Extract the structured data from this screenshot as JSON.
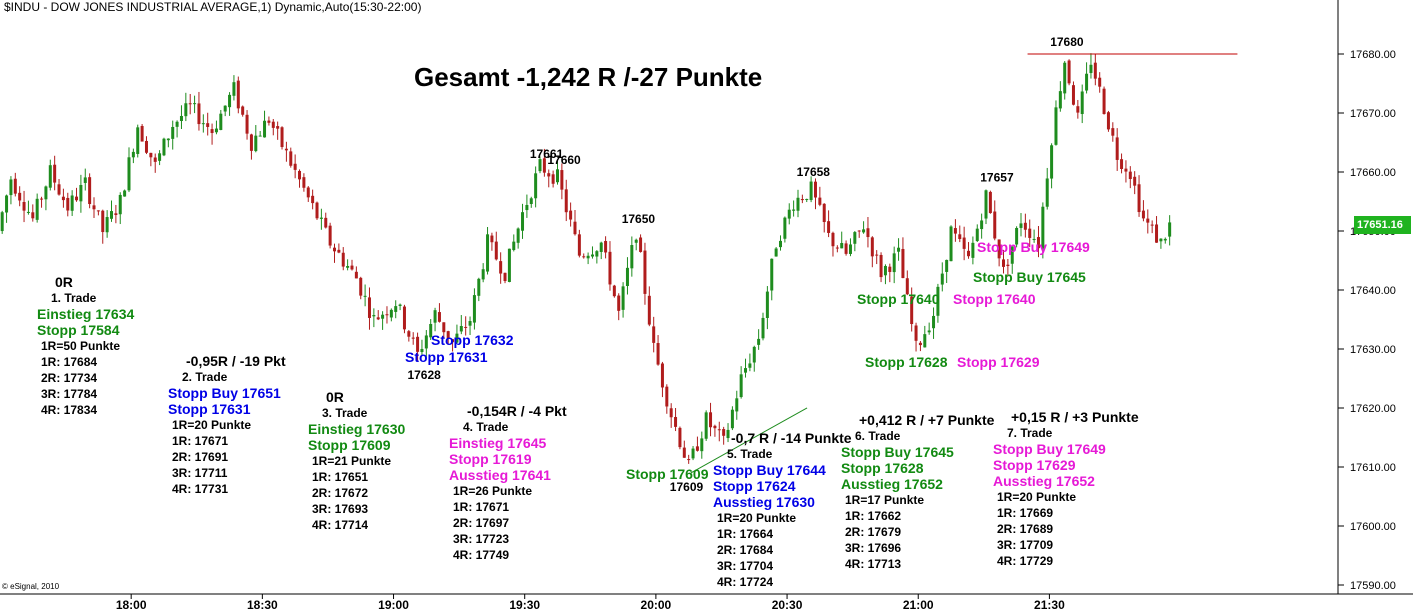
{
  "header": {
    "title": "$INDU - DOW JONES INDUSTRIAL AVERAGE,1) Dynamic,Auto(15:30-22:00)",
    "summary": "Gesamt -1,242 R /-27 Punkte",
    "credit": "© eSignal, 2010",
    "last_price": "17651.16"
  },
  "chart_data": {
    "type": "candlestick",
    "ylim": [
      17588,
      17688
    ],
    "y_ticks": [
      "17590.00",
      "17600.00",
      "17610.00",
      "17620.00",
      "17630.00",
      "17640.00",
      "17650.00",
      "17660.00",
      "17670.00",
      "17680.00"
    ],
    "y_tick_values": [
      17590,
      17600,
      17610,
      17620,
      17630,
      17640,
      17650,
      17660,
      17670,
      17680
    ],
    "x_ticks": [
      "18:00",
      "18:30",
      "19:00",
      "19:30",
      "20:00",
      "20:30",
      "21:00",
      "21:30"
    ],
    "x_tick_minutes": [
      30,
      60,
      90,
      120,
      150,
      180,
      210,
      240
    ],
    "x_range_minutes": [
      0,
      306
    ],
    "colors": {
      "up": "#1e8c1e",
      "down": "#b01c1c",
      "grid": "#cccccc",
      "resistance": "#c00000",
      "trendline": "#1e8c1e"
    },
    "anchors": [
      {
        "t": 0,
        "p": 17650
      },
      {
        "t": 3,
        "p": 17659
      },
      {
        "t": 8,
        "p": 17652
      },
      {
        "t": 12,
        "p": 17660
      },
      {
        "t": 16,
        "p": 17654
      },
      {
        "t": 20,
        "p": 17658
      },
      {
        "t": 24,
        "p": 17650
      },
      {
        "t": 28,
        "p": 17655
      },
      {
        "t": 32,
        "p": 17668
      },
      {
        "t": 36,
        "p": 17661
      },
      {
        "t": 40,
        "p": 17668
      },
      {
        "t": 44,
        "p": 17671
      },
      {
        "t": 49,
        "p": 17667
      },
      {
        "t": 54,
        "p": 17674
      },
      {
        "t": 58,
        "p": 17665
      },
      {
        "t": 62,
        "p": 17669
      },
      {
        "t": 66,
        "p": 17663
      },
      {
        "t": 70,
        "p": 17657
      },
      {
        "t": 76,
        "p": 17648
      },
      {
        "t": 82,
        "p": 17642
      },
      {
        "t": 86,
        "p": 17635
      },
      {
        "t": 91,
        "p": 17638
      },
      {
        "t": 96,
        "p": 17629
      },
      {
        "t": 100,
        "p": 17636
      },
      {
        "t": 104,
        "p": 17631
      },
      {
        "t": 108,
        "p": 17635
      },
      {
        "t": 112,
        "p": 17648
      },
      {
        "t": 116,
        "p": 17643
      },
      {
        "t": 120,
        "p": 17653
      },
      {
        "t": 124,
        "p": 17661
      },
      {
        "t": 128,
        "p": 17659
      },
      {
        "t": 133,
        "p": 17646
      },
      {
        "t": 138,
        "p": 17648
      },
      {
        "t": 142,
        "p": 17636
      },
      {
        "t": 146,
        "p": 17650
      },
      {
        "t": 150,
        "p": 17630
      },
      {
        "t": 154,
        "p": 17619
      },
      {
        "t": 158,
        "p": 17610
      },
      {
        "t": 162,
        "p": 17618
      },
      {
        "t": 166,
        "p": 17614
      },
      {
        "t": 170,
        "p": 17625
      },
      {
        "t": 174,
        "p": 17632
      },
      {
        "t": 178,
        "p": 17648
      },
      {
        "t": 182,
        "p": 17655
      },
      {
        "t": 186,
        "p": 17657
      },
      {
        "t": 190,
        "p": 17649
      },
      {
        "t": 194,
        "p": 17646
      },
      {
        "t": 198,
        "p": 17651
      },
      {
        "t": 202,
        "p": 17643
      },
      {
        "t": 206,
        "p": 17646
      },
      {
        "t": 210,
        "p": 17630
      },
      {
        "t": 214,
        "p": 17636
      },
      {
        "t": 218,
        "p": 17650
      },
      {
        "t": 222,
        "p": 17645
      },
      {
        "t": 226,
        "p": 17656
      },
      {
        "t": 230,
        "p": 17643
      },
      {
        "t": 234,
        "p": 17652
      },
      {
        "t": 238,
        "p": 17648
      },
      {
        "t": 241,
        "p": 17666
      },
      {
        "t": 244,
        "p": 17679
      },
      {
        "t": 247,
        "p": 17669
      },
      {
        "t": 250,
        "p": 17679
      },
      {
        "t": 253,
        "p": 17671
      },
      {
        "t": 256,
        "p": 17663
      },
      {
        "t": 259,
        "p": 17660
      },
      {
        "t": 262,
        "p": 17652
      },
      {
        "t": 266,
        "p": 17648
      },
      {
        "t": 268,
        "p": 17651
      }
    ],
    "peak_labels": [
      {
        "text": "17628",
        "t": 97,
        "p": 17628,
        "pos": "below"
      },
      {
        "text": "17661",
        "t": 125,
        "p": 17661,
        "pos": "above"
      },
      {
        "text": "17660",
        "t": 129,
        "p": 17660,
        "pos": "above"
      },
      {
        "text": "17650",
        "t": 146,
        "p": 17650,
        "pos": "above"
      },
      {
        "text": "17609",
        "t": 157,
        "p": 17609,
        "pos": "below"
      },
      {
        "text": "17658",
        "t": 186,
        "p": 17658,
        "pos": "above"
      },
      {
        "text": "17657",
        "t": 228,
        "p": 17657,
        "pos": "above"
      },
      {
        "text": "17680",
        "t": 244,
        "p": 17680,
        "pos": "above"
      }
    ],
    "resistance_line": {
      "t1": 235,
      "t2": 283,
      "p": 17680
    },
    "trend_line": {
      "t1": 158,
      "p1": 17609,
      "t2": 180,
      "p2": 17619
    }
  },
  "annotations": [
    {
      "lines": [
        {
          "text": "0R",
          "color": "black",
          "size": "fs15"
        },
        {
          "text": "1. Trade",
          "color": "black",
          "size": "fs12"
        },
        {
          "text": "Einstieg 17634",
          "color": "green",
          "size": "fs15"
        },
        {
          "text": "Stopp 17584",
          "color": "green",
          "size": "fs15"
        },
        {
          "text": "1R=50 Punkte",
          "color": "black",
          "size": "fs12"
        },
        {
          "text": "1R: 17684",
          "color": "black",
          "size": "fs12"
        },
        {
          "text": "2R: 17734",
          "color": "black",
          "size": "fs12"
        },
        {
          "text": "3R: 17784",
          "color": "black",
          "size": "fs12"
        },
        {
          "text": "4R: 17834",
          "color": "black",
          "size": "fs12"
        }
      ]
    },
    {
      "lines": [
        {
          "text": "-0,95R / -19 Pkt",
          "color": "black",
          "size": "fs15"
        },
        {
          "text": "2. Trade",
          "color": "black",
          "size": "fs12"
        },
        {
          "text": "Stopp Buy 17651",
          "color": "blue",
          "size": "fs15"
        },
        {
          "text": "Stopp 17631",
          "color": "blue",
          "size": "fs15"
        },
        {
          "text": "1R=20 Punkte",
          "color": "black",
          "size": "fs12"
        },
        {
          "text": "1R: 17671",
          "color": "black",
          "size": "fs12"
        },
        {
          "text": "2R: 17691",
          "color": "black",
          "size": "fs12"
        },
        {
          "text": "3R: 17711",
          "color": "black",
          "size": "fs12"
        },
        {
          "text": "4R: 17731",
          "color": "black",
          "size": "fs12"
        }
      ]
    },
    {
      "lines": [
        {
          "text": "0R",
          "color": "black",
          "size": "fs15"
        },
        {
          "text": "3. Trade",
          "color": "black",
          "size": "fs12"
        },
        {
          "text": "Einstieg 17630",
          "color": "green",
          "size": "fs15"
        },
        {
          "text": "Stopp 17609",
          "color": "green",
          "size": "fs15"
        },
        {
          "text": "1R=21 Punkte",
          "color": "black",
          "size": "fs12"
        },
        {
          "text": "1R: 17651",
          "color": "black",
          "size": "fs12"
        },
        {
          "text": "2R: 17672",
          "color": "black",
          "size": "fs12"
        },
        {
          "text": "3R: 17693",
          "color": "black",
          "size": "fs12"
        },
        {
          "text": "4R: 17714",
          "color": "black",
          "size": "fs12"
        }
      ]
    },
    {
      "lines": [
        {
          "text": "-0,154R / -4 Pkt",
          "color": "black",
          "size": "fs15"
        },
        {
          "text": "4. Trade",
          "color": "black",
          "size": "fs12"
        },
        {
          "text": "Einstieg 17645",
          "color": "magenta",
          "size": "fs15"
        },
        {
          "text": "Stopp 17619",
          "color": "magenta",
          "size": "fs15"
        },
        {
          "text": "Ausstieg 17641",
          "color": "magenta",
          "size": "fs15"
        },
        {
          "text": "1R=26 Punkte",
          "color": "black",
          "size": "fs12"
        },
        {
          "text": "1R: 17671",
          "color": "black",
          "size": "fs12"
        },
        {
          "text": "2R: 17697",
          "color": "black",
          "size": "fs12"
        },
        {
          "text": "3R: 17723",
          "color": "black",
          "size": "fs12"
        },
        {
          "text": "4R: 17749",
          "color": "black",
          "size": "fs12"
        }
      ]
    },
    {
      "lines": [
        {
          "text": "-0,7 R / -14 Punkte",
          "color": "black",
          "size": "fs15"
        },
        {
          "text": "5. Trade",
          "color": "black",
          "size": "fs12"
        },
        {
          "text": "Stopp Buy 17644",
          "color": "blue",
          "size": "fs15"
        },
        {
          "text": "Stopp 17624",
          "color": "blue",
          "size": "fs15"
        },
        {
          "text": "Ausstieg 17630",
          "color": "blue",
          "size": "fs15"
        },
        {
          "text": "1R=20 Punkte",
          "color": "black",
          "size": "fs12"
        },
        {
          "text": "1R: 17664",
          "color": "black",
          "size": "fs12"
        },
        {
          "text": "2R: 17684",
          "color": "black",
          "size": "fs12"
        },
        {
          "text": "3R: 17704",
          "color": "black",
          "size": "fs12"
        },
        {
          "text": "4R: 17724",
          "color": "black",
          "size": "fs12"
        }
      ]
    },
    {
      "lines": [
        {
          "text": "+0,412 R / +7 Punkte",
          "color": "black",
          "size": "fs15"
        },
        {
          "text": "6. Trade",
          "color": "black",
          "size": "fs12"
        },
        {
          "text": "Stopp Buy 17645",
          "color": "green",
          "size": "fs15"
        },
        {
          "text": "Stopp 17628",
          "color": "green",
          "size": "fs15"
        },
        {
          "text": "Ausstieg 17652",
          "color": "green",
          "size": "fs15"
        },
        {
          "text": "1R=17 Punkte",
          "color": "black",
          "size": "fs12"
        },
        {
          "text": "1R: 17662",
          "color": "black",
          "size": "fs12"
        },
        {
          "text": "2R: 17679",
          "color": "black",
          "size": "fs12"
        },
        {
          "text": "3R: 17696",
          "color": "black",
          "size": "fs12"
        },
        {
          "text": "4R: 17713",
          "color": "black",
          "size": "fs12"
        }
      ]
    },
    {
      "lines": [
        {
          "text": "+0,15 R / +3 Punkte",
          "color": "black",
          "size": "fs15"
        },
        {
          "text": "7. Trade",
          "color": "black",
          "size": "fs12"
        },
        {
          "text": "Stopp Buy 17649",
          "color": "magenta",
          "size": "fs15"
        },
        {
          "text": "Stopp 17629",
          "color": "magenta",
          "size": "fs15"
        },
        {
          "text": "Ausstieg 17652",
          "color": "magenta",
          "size": "fs15"
        },
        {
          "text": "1R=20 Punkte",
          "color": "black",
          "size": "fs12"
        },
        {
          "text": "1R: 17669",
          "color": "black",
          "size": "fs12"
        },
        {
          "text": "2R: 17689",
          "color": "black",
          "size": "fs12"
        },
        {
          "text": "3R: 17709",
          "color": "black",
          "size": "fs12"
        },
        {
          "text": "4R: 17729",
          "color": "black",
          "size": "fs12"
        }
      ]
    }
  ],
  "chart_labels": [
    {
      "text": "Stopp 17632",
      "color": "blue"
    },
    {
      "text": "Stopp 17631",
      "color": "blue"
    },
    {
      "text": "Stopp 17609",
      "color": "green"
    },
    {
      "text": "Stopp 17640",
      "color": "green"
    },
    {
      "text": "Stopp 17628",
      "color": "green"
    },
    {
      "text": "Stopp 17640",
      "color": "magenta"
    },
    {
      "text": "Stopp 17629",
      "color": "magenta"
    },
    {
      "text": "Stopp Buy 17649",
      "color": "magenta"
    },
    {
      "text": "Stopp Buy 17645",
      "color": "green"
    }
  ]
}
